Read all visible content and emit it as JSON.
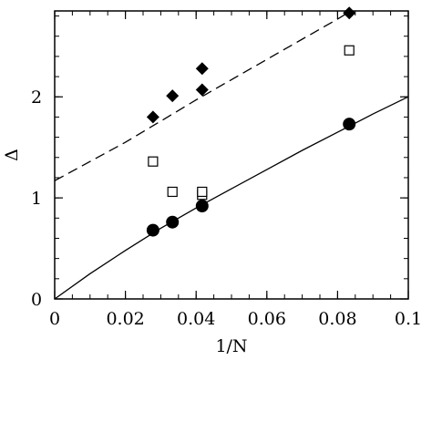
{
  "chart_data": {
    "type": "scatter",
    "title": "",
    "xlabel": "1/N",
    "ylabel": "Δ",
    "xlim": [
      0,
      0.1
    ],
    "ylim": [
      0,
      2.85
    ],
    "x_ticks": [
      0,
      0.02,
      0.04,
      0.06,
      0.08,
      0.1
    ],
    "x_tick_labels": [
      "0",
      "0.02",
      "0.04",
      "0.06",
      "0.08",
      "0.1"
    ],
    "y_ticks": [
      0,
      1,
      2
    ],
    "y_tick_labels": [
      "0",
      "1",
      "2"
    ],
    "grid": false,
    "legend": "none",
    "series": [
      {
        "marker": "filled-diamond",
        "color": "#000000",
        "x": [
          0.0278,
          0.0333,
          0.0417,
          0.0417,
          0.0833
        ],
        "y": [
          1.8,
          2.01,
          2.07,
          2.28,
          2.83
        ]
      },
      {
        "marker": "open-square",
        "color": "#000000",
        "x": [
          0.0278,
          0.0333,
          0.0417,
          0.0417,
          0.0833
        ],
        "y": [
          1.36,
          1.06,
          1.03,
          1.06,
          2.46
        ]
      },
      {
        "marker": "filled-circle",
        "color": "#000000",
        "x": [
          0.0278,
          0.0333,
          0.0417,
          0.0833
        ],
        "y": [
          0.68,
          0.76,
          0.92,
          1.73
        ]
      }
    ],
    "fits": [
      {
        "style": "dashed",
        "x": [
          0,
          0.01,
          0.02,
          0.03,
          0.04,
          0.05,
          0.06,
          0.07,
          0.08,
          0.0833
        ],
        "y": [
          1.17,
          1.36,
          1.55,
          1.76,
          1.97,
          2.17,
          2.37,
          2.57,
          2.77,
          2.84
        ]
      },
      {
        "style": "solid",
        "x": [
          0,
          0.01,
          0.02,
          0.03,
          0.04,
          0.05,
          0.06,
          0.07,
          0.08,
          0.09,
          0.1
        ],
        "y": [
          0.0,
          0.25,
          0.48,
          0.7,
          0.9,
          1.09,
          1.28,
          1.47,
          1.65,
          1.83,
          2.0
        ]
      }
    ]
  }
}
